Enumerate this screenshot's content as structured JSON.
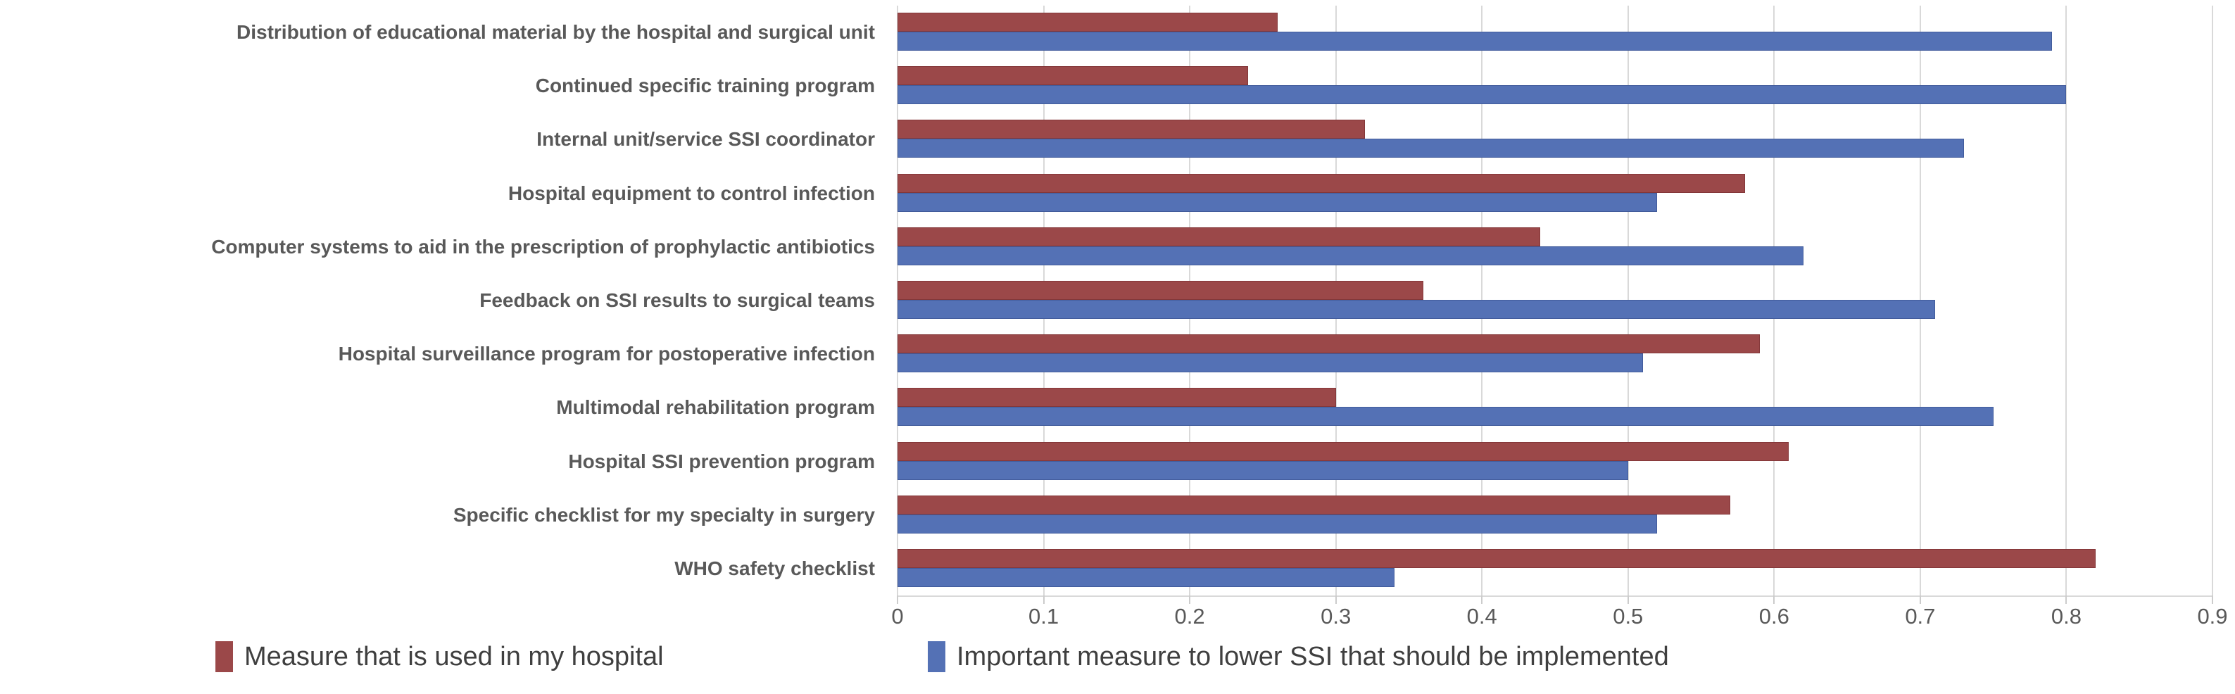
{
  "chart_data": {
    "type": "bar",
    "orientation": "horizontal",
    "title": "",
    "xlabel": "",
    "ylabel": "",
    "xlim": [
      0,
      0.9
    ],
    "xticks": [
      0,
      0.1,
      0.2,
      0.3,
      0.4,
      0.5,
      0.6,
      0.7,
      0.8,
      0.9
    ],
    "xtick_labels": [
      "0",
      "0.1",
      "0.2",
      "0.3",
      "0.4",
      "0.5",
      "0.6",
      "0.7",
      "0.8",
      "0.9"
    ],
    "grid": "vertical",
    "legend_position": "bottom",
    "categories": [
      "Distribution of educational material by the hospital and surgical unit",
      "Continued specific training program",
      "Internal unit/service SSI coordinator",
      "Hospital equipment to control infection",
      "Computer systems to aid in the prescription of prophylactic antibiotics",
      "Feedback on SSI results to surgical teams",
      "Hospital surveillance program for postoperative infection",
      "Multimodal rehabilitation program",
      "Hospital SSI prevention program",
      "Specific checklist for my specialty in surgery",
      "WHO safety checklist"
    ],
    "series": [
      {
        "name": "Measure that is used in my hospital",
        "color": "#9b4849",
        "values": [
          0.26,
          0.24,
          0.32,
          0.58,
          0.44,
          0.36,
          0.59,
          0.3,
          0.61,
          0.57,
          0.82
        ]
      },
      {
        "name": "Important measure to lower SSI that should be implemented",
        "color": "#5471b5",
        "values": [
          0.79,
          0.8,
          0.73,
          0.52,
          0.62,
          0.71,
          0.51,
          0.75,
          0.5,
          0.52,
          0.34
        ]
      }
    ],
    "colors": {
      "gridline": "#d9d9d9",
      "axis_text": "#595959",
      "category_text": "#595959",
      "legend_text": "#3f3f3f"
    }
  }
}
